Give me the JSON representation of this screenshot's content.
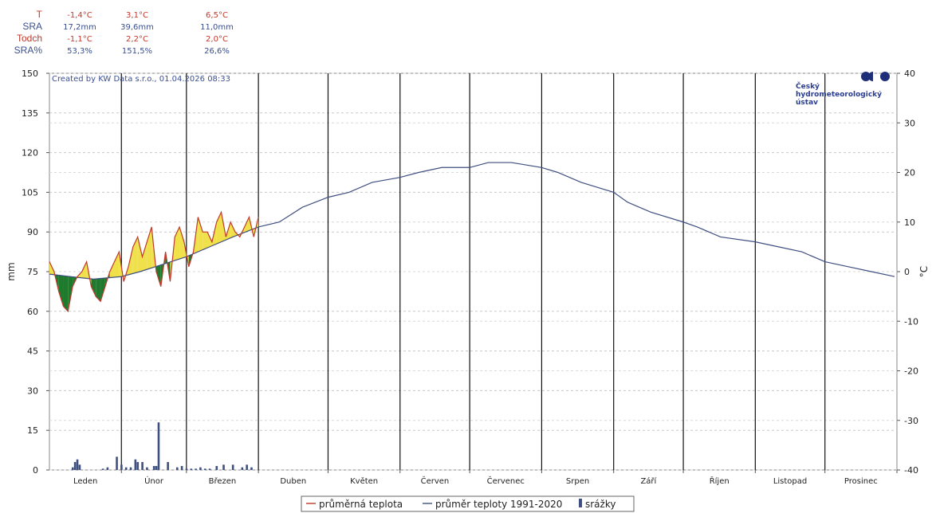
{
  "stats": {
    "rows": [
      {
        "label": "T",
        "values": [
          "-1,4°C",
          "3,1°C",
          "6,5°C"
        ],
        "color": "#c0392b"
      },
      {
        "label": "SRA",
        "values": [
          "17,2mm",
          "39,6mm",
          "11,0mm"
        ],
        "color": "#3a4f8f"
      },
      {
        "label": "Todch",
        "values": [
          "-1,1°C",
          "2,2°C",
          "2,0°C"
        ],
        "color": "#c0392b"
      },
      {
        "label": "SRA%",
        "values": [
          "53,3%",
          "151,5%",
          "26,6%"
        ],
        "color": "#3a4f8f"
      }
    ]
  },
  "credit": "Created by KW Data s.r.o., 01.04.2026 08:33",
  "logo": {
    "line1": "Český",
    "line2": "hydrometeorologický",
    "line3": "ústav"
  },
  "chart_data": {
    "type": "line",
    "left_axis": {
      "label": "mm",
      "ticks": [
        0,
        15,
        30,
        45,
        60,
        75,
        90,
        105,
        120,
        135,
        150
      ],
      "ylim": [
        0,
        150
      ]
    },
    "right_axis": {
      "label": "°C",
      "ticks": [
        -40,
        -30,
        -20,
        -10,
        0,
        10,
        20,
        30,
        40
      ],
      "ylim": [
        -40,
        40
      ]
    },
    "months": [
      "Leden",
      "Únor",
      "Březen",
      "Duben",
      "Květen",
      "Červen",
      "Červenec",
      "Srpen",
      "Září",
      "Říjen",
      "Listopad",
      "Prosinec"
    ],
    "month_days": [
      31,
      28,
      31,
      30,
      31,
      30,
      31,
      31,
      30,
      31,
      30,
      31
    ],
    "grid": true,
    "legend_position": "bottom",
    "series": [
      {
        "name": "průměrná teplota",
        "color": "#c0392b",
        "x_day": [
          1,
          3,
          5,
          7,
          9,
          11,
          13,
          15,
          17,
          19,
          21,
          23,
          25,
          27,
          29,
          31,
          33,
          35,
          37,
          39,
          41,
          43,
          45,
          47,
          49,
          51,
          53,
          55,
          57,
          59,
          61,
          63,
          65,
          67,
          69,
          71,
          73,
          75,
          77,
          79,
          81,
          83,
          85,
          87,
          89,
          91
        ],
        "values": [
          2,
          0,
          -4,
          -7,
          -8,
          -3,
          -1,
          0,
          2,
          -3,
          -5,
          -6,
          -3,
          0,
          2,
          4,
          -2,
          1,
          5,
          7,
          3,
          6,
          9,
          0,
          -3,
          4,
          -2,
          7,
          9,
          6,
          1,
          4,
          11,
          8,
          8,
          6,
          10,
          12,
          7,
          10,
          8,
          7,
          9,
          11,
          7,
          11
        ]
      },
      {
        "name": "průměr teploty 1991-2020",
        "color": "#3f4f80",
        "x_day": [
          1,
          10,
          20,
          32,
          40,
          50,
          60,
          70,
          80,
          91,
          100,
          110,
          121,
          130,
          140,
          152,
          160,
          170,
          182,
          190,
          200,
          213,
          220,
          230,
          244,
          250,
          260,
          274,
          280,
          290,
          305,
          315,
          325,
          335,
          345,
          355,
          365
        ],
        "values": [
          -0.5,
          -1,
          -1.5,
          -1,
          0,
          1.5,
          3,
          5,
          7,
          9,
          10,
          13,
          15,
          16,
          18,
          19,
          20,
          21,
          21,
          22,
          22,
          21,
          20,
          18,
          16,
          14,
          12,
          10,
          9,
          7,
          6,
          5,
          4,
          2,
          1,
          0,
          -1
        ]
      },
      {
        "name": "srážky",
        "color": "#3f4f80",
        "type": "bar",
        "x_day": [
          11,
          12,
          13,
          14,
          24,
          26,
          30,
          32,
          34,
          36,
          38,
          39,
          41,
          43,
          46,
          47,
          48,
          52,
          56,
          58,
          60,
          62,
          64,
          66,
          68,
          70,
          73,
          76,
          80,
          84,
          86,
          88
        ],
        "values": [
          1,
          3,
          4,
          2,
          0.5,
          1,
          5,
          2,
          1,
          1,
          4,
          3,
          3,
          1,
          1.5,
          1.5,
          18,
          3,
          1,
          1.5,
          0.5,
          0.5,
          0.5,
          1,
          0.5,
          0.5,
          1.5,
          2,
          2,
          1,
          2,
          1
        ]
      }
    ],
    "fill_colors": {
      "above": "#f0e14a",
      "below": "#1f7a2e"
    }
  },
  "legend": {
    "items": [
      {
        "label": "průměrná teplota",
        "color": "#c0392b",
        "kind": "line"
      },
      {
        "label": "průměr teploty 1991-2020",
        "color": "#3f4f80",
        "kind": "line"
      },
      {
        "label": "srážky",
        "color": "#3f4f80",
        "kind": "bar"
      }
    ]
  }
}
